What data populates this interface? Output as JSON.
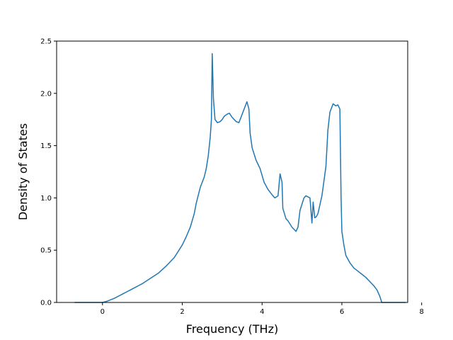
{
  "chart_data": {
    "type": "line",
    "title": "",
    "xlabel": "Frequency (THz)",
    "ylabel": "Density of States",
    "xlim": [
      -1.15,
      7.65
    ],
    "ylim": [
      0,
      2.5
    ],
    "xticks": [
      0,
      2,
      4,
      6,
      8
    ],
    "xtick_labels": [
      "0",
      "2",
      "4",
      "6",
      "8"
    ],
    "yticks": [
      0.0,
      0.5,
      1.0,
      1.5,
      2.0,
      2.5
    ],
    "ytick_labels": [
      "0.0",
      "0.5",
      "1.0",
      "1.5",
      "2.0",
      "2.5"
    ],
    "grid": false,
    "series": [
      {
        "color": "#1f77b4",
        "x": [
          -0.7,
          0.0,
          0.1,
          0.2,
          0.3,
          0.4,
          0.5,
          0.6,
          0.7,
          0.8,
          0.9,
          1.0,
          1.2,
          1.4,
          1.6,
          1.8,
          2.0,
          2.1,
          2.2,
          2.3,
          2.35,
          2.45,
          2.55,
          2.6,
          2.65,
          2.7,
          2.73,
          2.75,
          2.78,
          2.82,
          2.88,
          2.95,
          3.0,
          3.05,
          3.12,
          3.18,
          3.25,
          3.3,
          3.35,
          3.42,
          3.5,
          3.55,
          3.62,
          3.67,
          3.7,
          3.75,
          3.85,
          3.95,
          4.05,
          4.15,
          4.25,
          4.32,
          4.4,
          4.45,
          4.5,
          4.52,
          4.56,
          4.6,
          4.65,
          4.75,
          4.85,
          4.9,
          4.95,
          5.05,
          5.1,
          5.2,
          5.25,
          5.28,
          5.32,
          5.36,
          5.4,
          5.5,
          5.6,
          5.65,
          5.7,
          5.78,
          5.85,
          5.9,
          5.95,
          5.98,
          6.0,
          6.05,
          6.1,
          6.2,
          6.3,
          6.4,
          6.5,
          6.6,
          6.7,
          6.8,
          6.88,
          6.95,
          7.0,
          7.6
        ],
        "y": [
          0.0,
          0.0,
          0.01,
          0.025,
          0.04,
          0.06,
          0.08,
          0.1,
          0.12,
          0.14,
          0.16,
          0.18,
          0.23,
          0.28,
          0.35,
          0.43,
          0.55,
          0.63,
          0.72,
          0.85,
          0.95,
          1.1,
          1.2,
          1.28,
          1.4,
          1.58,
          1.75,
          2.38,
          1.95,
          1.75,
          1.72,
          1.73,
          1.75,
          1.78,
          1.8,
          1.81,
          1.77,
          1.75,
          1.73,
          1.72,
          1.8,
          1.85,
          1.92,
          1.85,
          1.62,
          1.48,
          1.36,
          1.28,
          1.15,
          1.08,
          1.03,
          1.0,
          1.02,
          1.23,
          1.15,
          0.9,
          0.85,
          0.8,
          0.78,
          0.72,
          0.68,
          0.72,
          0.88,
          1.0,
          1.02,
          1.0,
          0.76,
          0.96,
          0.81,
          0.82,
          0.85,
          1.02,
          1.3,
          1.65,
          1.82,
          1.9,
          1.88,
          1.89,
          1.85,
          1.0,
          0.68,
          0.55,
          0.45,
          0.38,
          0.33,
          0.3,
          0.27,
          0.24,
          0.2,
          0.16,
          0.12,
          0.06,
          0.0,
          0.0
        ]
      }
    ]
  }
}
